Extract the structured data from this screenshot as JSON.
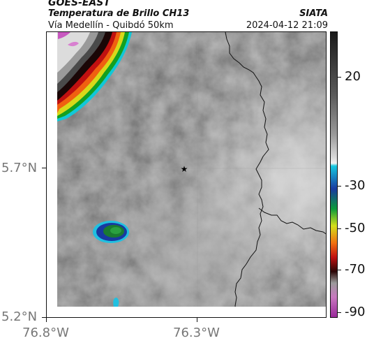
{
  "header": {
    "satellite": "GOES-EAST",
    "product": "Temperatura de Brillo CH13",
    "location": "Vía Medellín - Quibdó 50km",
    "source": "SIATA",
    "datetime": "2024-04-12 21:09"
  },
  "map": {
    "lat_labels": [
      "5.7°N",
      "5.2°N"
    ],
    "lon_labels": [
      "76.8°W",
      "76.3°W"
    ],
    "marker_icon": "star-icon",
    "colors": {
      "background_gray": "#6e6e6e",
      "cold_cloud_teal": "#1fb9d6",
      "cold_core_green": "#2f8f2a",
      "frame": "#111111"
    }
  },
  "colorbar": {
    "ticks": [
      "20",
      "-30",
      "-50",
      "-70",
      "-90"
    ],
    "gradient": [
      "#1a1a1a",
      "#5a5a5a",
      "#9a9a9a",
      "#d9d9d9",
      "#f2f2f2",
      "#14c8e0",
      "#1a3aa0",
      "#0a9a3a",
      "#d4e01a",
      "#f07010",
      "#c01010",
      "#2a0505",
      "#9a9a9a",
      "#c878c0",
      "#9a2a9a"
    ]
  }
}
